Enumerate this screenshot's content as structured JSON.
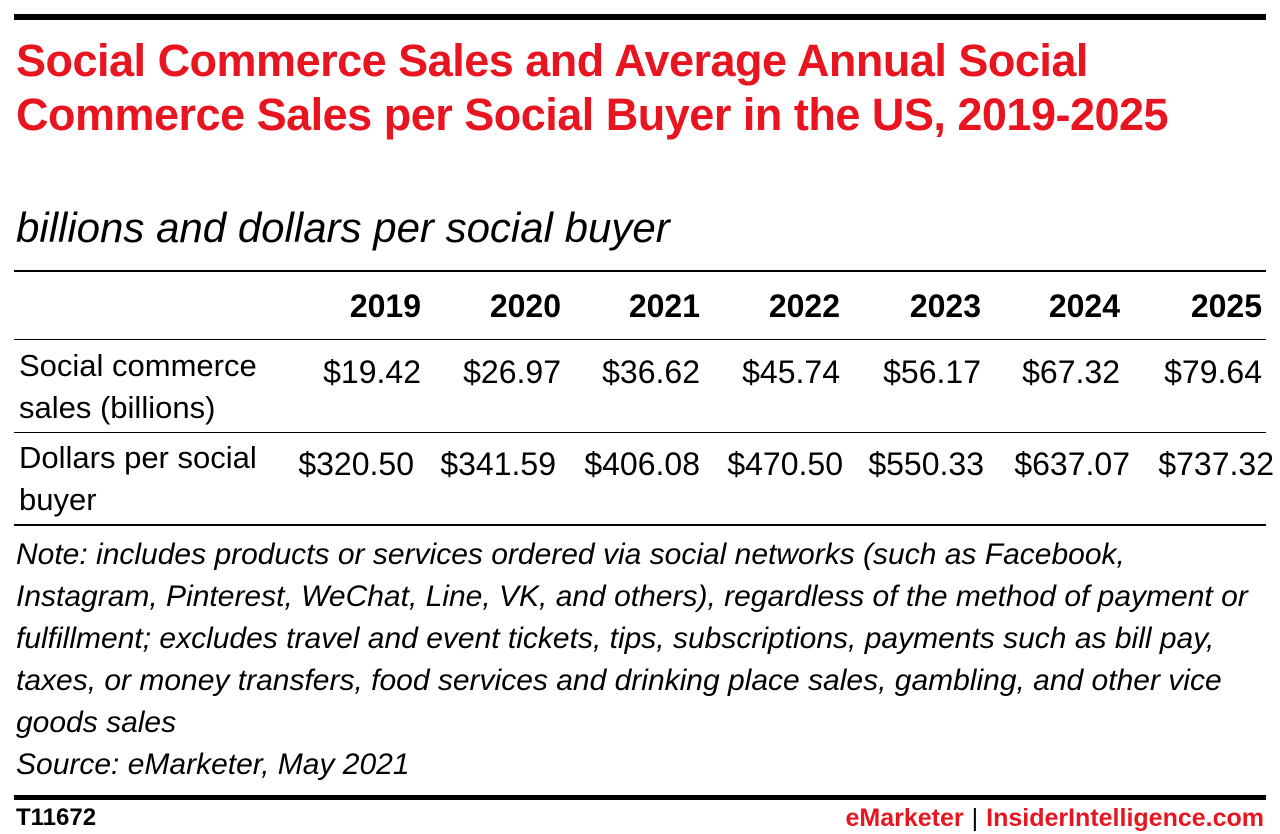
{
  "chart_data": {
    "type": "table",
    "title": "Social Commerce Sales and Average Annual Social Commerce Sales per Social Buyer in the US, 2019-2025",
    "subtitle": "billions and dollars per social buyer",
    "columns": [
      "2019",
      "2020",
      "2021",
      "2022",
      "2023",
      "2024",
      "2025"
    ],
    "rows": [
      {
        "label": "Social commerce sales (billions)",
        "values": [
          "$19.42",
          "$26.97",
          "$36.62",
          "$45.74",
          "$56.17",
          "$67.32",
          "$79.64"
        ]
      },
      {
        "label": "Dollars per social buyer",
        "values": [
          "$320.50",
          "$341.59",
          "$406.08",
          "$470.50",
          "$550.33",
          "$637.07",
          "$737.32"
        ]
      }
    ],
    "note": "Note: includes products or services ordered via social networks (such as Facebook, Instagram, Pinterest, WeChat, Line, VK, and others), regardless of the method of payment or fulfillment; excludes travel and event tickets, tips, subscriptions, payments such as bill pay, taxes, or money transfers, food services and drinking place sales, gambling, and other vice goods sales",
    "source": "Source: eMarketer, May 2021"
  },
  "footer": {
    "id": "T11672",
    "brand_left": "eMarketer",
    "separator": "|",
    "brand_right": "InsiderIntelligence.com"
  },
  "colors": {
    "accent": "#e8141f",
    "text": "#000000"
  }
}
